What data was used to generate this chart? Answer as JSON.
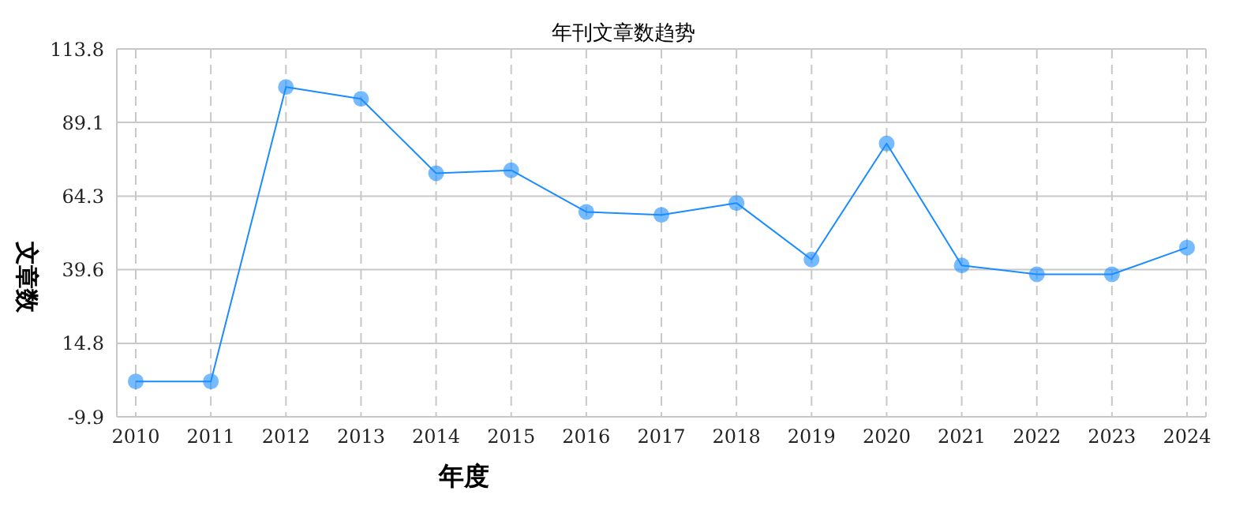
{
  "chart_data": {
    "type": "line",
    "title": "年刊文章数趋势",
    "xlabel": "年度",
    "ylabel": "文章数",
    "categories": [
      "2010",
      "2011",
      "2012",
      "2013",
      "2014",
      "2015",
      "2016",
      "2017",
      "2018",
      "2019",
      "2020",
      "2021",
      "2022",
      "2023",
      "2024"
    ],
    "series": [
      {
        "color": "#1a8cff",
        "values": [
          2,
          2,
          101,
          97,
          72,
          73,
          59,
          58,
          62,
          43,
          82,
          41,
          38,
          38,
          47
        ]
      }
    ],
    "ylim": [
      -9.9,
      113.8
    ],
    "yticks": [
      -9.9,
      14.8,
      39.6,
      64.3,
      89.1,
      113.8
    ],
    "grid": true,
    "marker": "circle",
    "line_style": "solid"
  }
}
